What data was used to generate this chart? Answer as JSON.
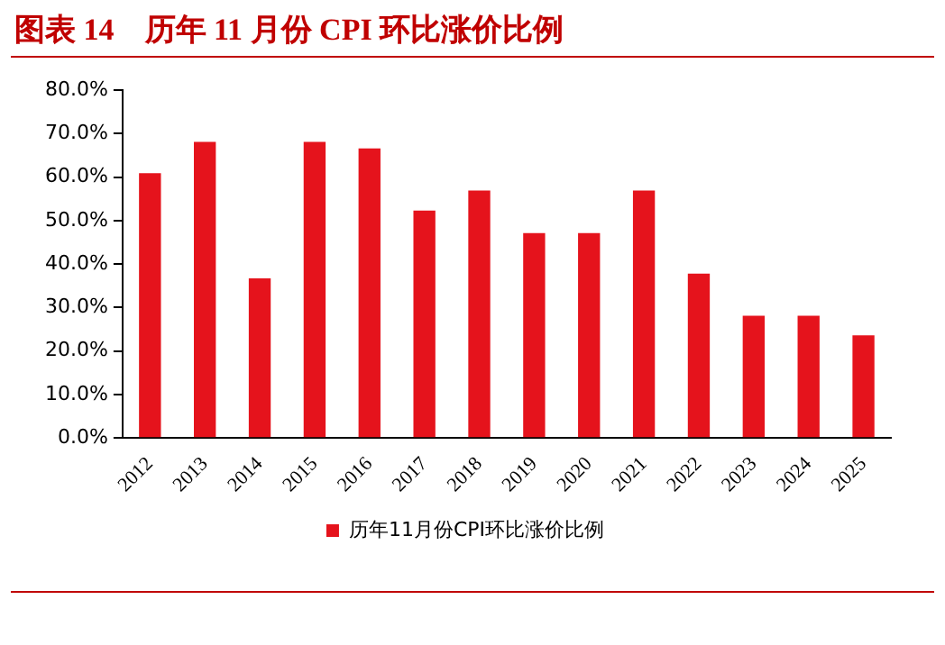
{
  "chart_data": {
    "type": "bar",
    "title": "图表 14　历年 11 月份 CPI 环比涨价比例",
    "categories": [
      "2012",
      "2013",
      "2014",
      "2015",
      "2016",
      "2017",
      "2018",
      "2019",
      "2020",
      "2021",
      "2022",
      "2023",
      "2024",
      "2025"
    ],
    "series": [
      {
        "name": "历年11月份CPI环比涨价比例",
        "color": "#e5131c",
        "values": [
          60.9,
          68.1,
          36.7,
          68.1,
          66.6,
          52.3,
          56.9,
          47.1,
          47.1,
          56.9,
          37.8,
          28.1,
          28.1,
          23.6
        ]
      }
    ],
    "ylim": [
      0,
      80
    ],
    "yticks": [
      {
        "value": 0,
        "label": "0.0%"
      },
      {
        "value": 10,
        "label": "10.0%"
      },
      {
        "value": 20,
        "label": "20.0%"
      },
      {
        "value": 30,
        "label": "30.0%"
      },
      {
        "value": 40,
        "label": "40.0%"
      },
      {
        "value": 50,
        "label": "50.0%"
      },
      {
        "value": 60,
        "label": "60.0%"
      },
      {
        "value": 70,
        "label": "70.0%"
      },
      {
        "value": 80,
        "label": "80.0%"
      }
    ],
    "grid": false,
    "legend": "bottom"
  }
}
